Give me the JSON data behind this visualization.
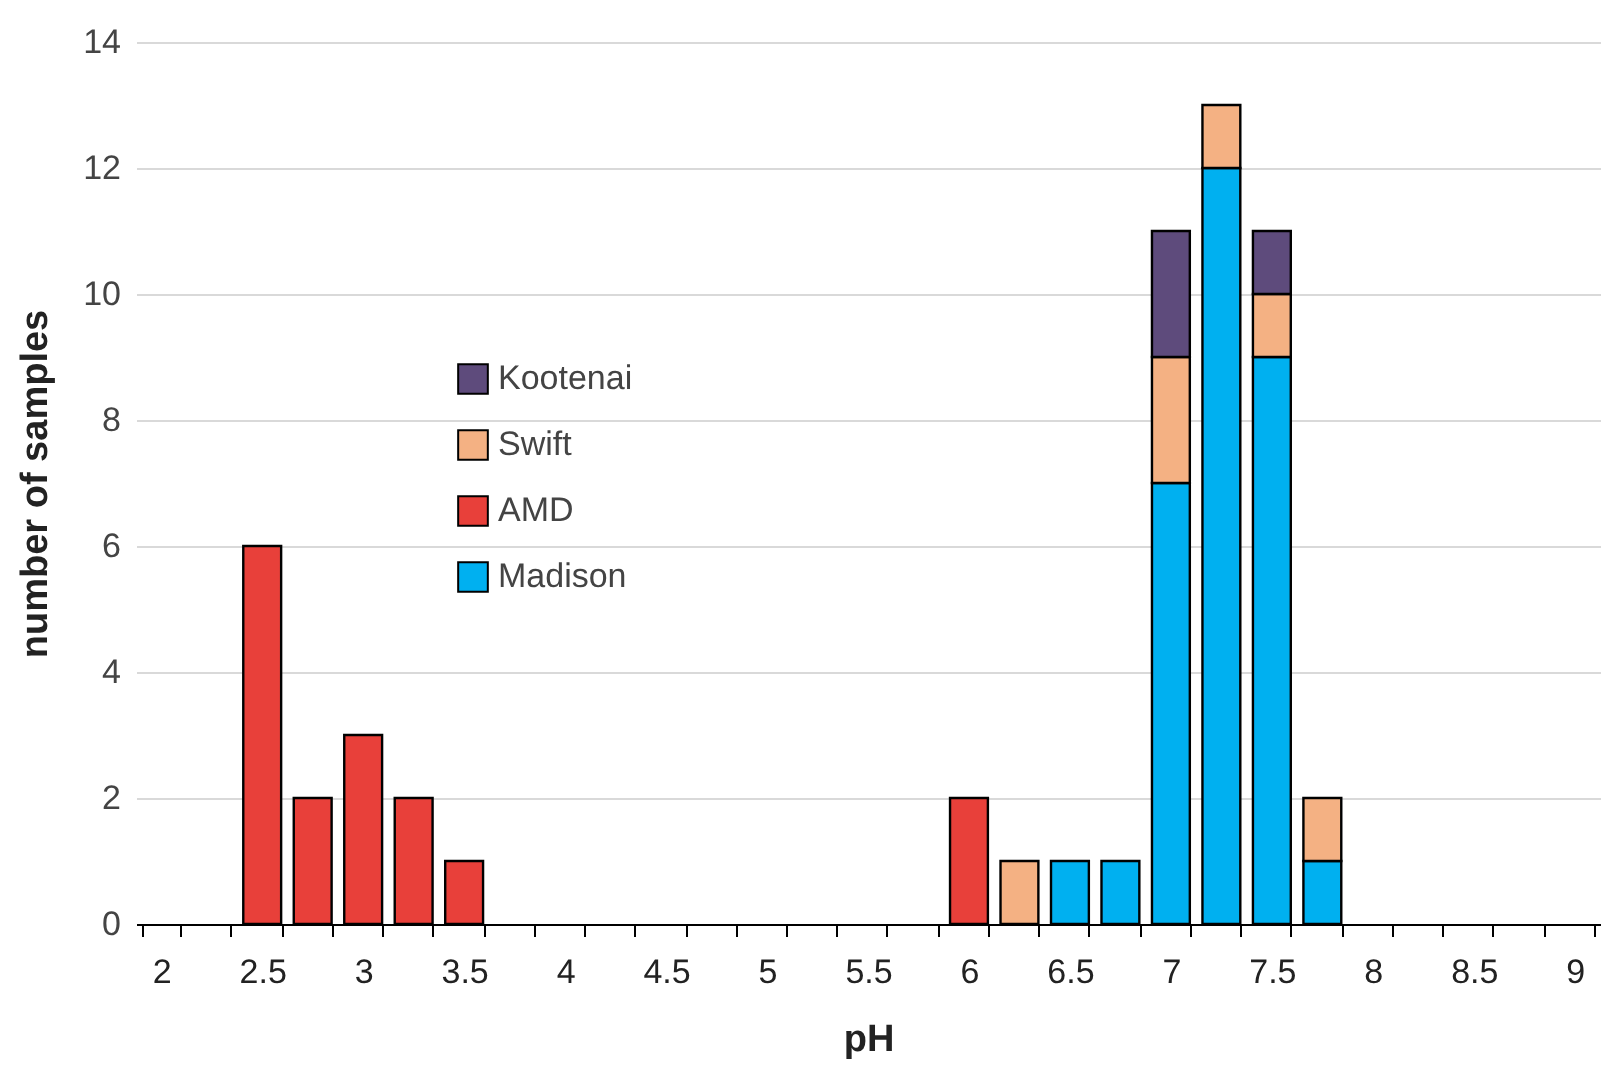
{
  "chart_data": {
    "type": "bar",
    "stacked": true,
    "xlabel": "pH",
    "ylabel": "number of samples",
    "categories": [
      "2",
      null,
      "2.5",
      null,
      "3",
      null,
      "3.5",
      null,
      "4",
      null,
      "4.5",
      null,
      "5",
      null,
      "5.5",
      null,
      "6",
      null,
      "6.5",
      null,
      "7",
      null,
      "7.5",
      null,
      "8",
      null,
      "8.5",
      null,
      "9"
    ],
    "series": [
      {
        "name": "Madison",
        "color": "#00b0f0",
        "values": [
          null,
          null,
          null,
          null,
          null,
          null,
          null,
          null,
          null,
          null,
          null,
          null,
          null,
          null,
          null,
          null,
          null,
          null,
          1,
          1,
          7,
          12,
          9,
          1,
          null,
          null,
          null,
          null,
          null
        ]
      },
      {
        "name": "AMD",
        "color": "#e8403a",
        "values": [
          null,
          null,
          6,
          2,
          3,
          2,
          1,
          null,
          null,
          null,
          null,
          null,
          null,
          null,
          null,
          null,
          2,
          null,
          null,
          null,
          null,
          null,
          null,
          null,
          null,
          null,
          null,
          null,
          null
        ]
      },
      {
        "name": "Swift",
        "color": "#f4b183",
        "values": [
          null,
          null,
          null,
          null,
          null,
          null,
          null,
          null,
          null,
          null,
          null,
          null,
          null,
          null,
          null,
          null,
          null,
          1,
          null,
          null,
          2,
          1,
          1,
          1,
          null,
          null,
          null,
          null,
          null
        ]
      },
      {
        "name": "Kootenai",
        "color": "#5e4b7c",
        "values": [
          null,
          null,
          null,
          null,
          null,
          null,
          null,
          null,
          null,
          null,
          null,
          null,
          null,
          null,
          null,
          null,
          null,
          null,
          null,
          null,
          2,
          null,
          1,
          null,
          null,
          null,
          null,
          null,
          null
        ]
      }
    ],
    "ylim": [
      0,
      14
    ],
    "yticks": [
      0,
      2,
      4,
      6,
      8,
      10,
      12,
      14
    ],
    "grid": "y",
    "legend": "top left"
  }
}
